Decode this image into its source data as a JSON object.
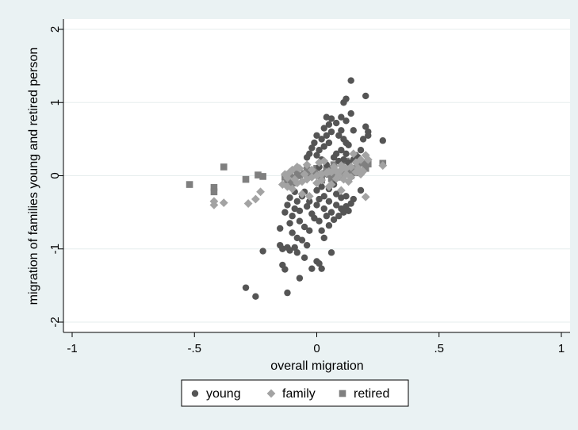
{
  "chart_data": {
    "type": "scatter",
    "xlabel": "overall migration",
    "ylabel": "migration of families young and retired person",
    "xlim": [
      -1,
      1
    ],
    "ylim": [
      -2,
      2
    ],
    "xticks": [
      -1,
      -0.5,
      0,
      0.5,
      1
    ],
    "xtick_labels": [
      "-1",
      "-.5",
      "0",
      ".5",
      "1"
    ],
    "yticks": [
      -2,
      -1,
      0,
      1,
      2
    ],
    "ytick_labels": [
      "-2",
      "-1",
      "0",
      "1",
      "2"
    ],
    "grid": true,
    "legend_position": "bottom",
    "series": [
      {
        "name": "young",
        "marker": "circle",
        "color": "#555555",
        "points": [
          [
            -0.25,
            -1.65
          ],
          [
            -0.29,
            -1.53
          ],
          [
            -0.12,
            -1.6
          ],
          [
            -0.22,
            -1.03
          ],
          [
            -0.15,
            -0.72
          ],
          [
            -0.14,
            -1.22
          ],
          [
            -0.13,
            -1.28
          ],
          [
            -0.15,
            -0.95
          ],
          [
            -0.14,
            -1.0
          ],
          [
            -0.12,
            -0.98
          ],
          [
            -0.11,
            -1.02
          ],
          [
            -0.09,
            -0.98
          ],
          [
            -0.08,
            -0.85
          ],
          [
            -0.1,
            -0.78
          ],
          [
            -0.11,
            -0.65
          ],
          [
            -0.1,
            -0.55
          ],
          [
            -0.09,
            -0.45
          ],
          [
            -0.08,
            -0.35
          ],
          [
            -0.06,
            -0.28
          ],
          [
            -0.05,
            -0.22
          ],
          [
            -0.07,
            -0.62
          ],
          [
            -0.05,
            -0.7
          ],
          [
            -0.03,
            -0.75
          ],
          [
            -0.06,
            -0.88
          ],
          [
            -0.04,
            -0.95
          ],
          [
            -0.08,
            -1.05
          ],
          [
            -0.05,
            -1.12
          ],
          [
            -0.07,
            -1.4
          ],
          [
            -0.02,
            -1.27
          ],
          [
            0.0,
            -1.17
          ],
          [
            0.01,
            -1.2
          ],
          [
            0.02,
            -1.27
          ],
          [
            0.06,
            -1.05
          ],
          [
            0.03,
            -0.85
          ],
          [
            0.02,
            -0.75
          ],
          [
            0.05,
            -0.68
          ],
          [
            0.01,
            -0.62
          ],
          [
            0.04,
            -0.55
          ],
          [
            0.06,
            -0.5
          ],
          [
            0.03,
            -0.45
          ],
          [
            0.0,
            -0.4
          ],
          [
            0.01,
            -0.32
          ],
          [
            0.05,
            -0.35
          ],
          [
            0.08,
            -0.4
          ],
          [
            0.1,
            -0.45
          ],
          [
            0.09,
            -0.55
          ],
          [
            0.07,
            -0.6
          ],
          [
            0.11,
            -0.5
          ],
          [
            0.12,
            -0.42
          ],
          [
            0.13,
            -0.48
          ],
          [
            0.1,
            -0.3
          ],
          [
            0.08,
            -0.25
          ],
          [
            0.12,
            -0.28
          ],
          [
            0.15,
            -0.32
          ],
          [
            0.18,
            -0.2
          ],
          [
            0.03,
            -0.28
          ],
          [
            -0.02,
            -0.52
          ],
          [
            -0.01,
            -0.58
          ],
          [
            -0.04,
            -0.42
          ],
          [
            -0.03,
            -0.35
          ],
          [
            0.0,
            -0.2
          ],
          [
            0.02,
            -0.15
          ],
          [
            0.14,
            -0.38
          ],
          [
            0.05,
            -0.18
          ],
          [
            0.07,
            -0.12
          ],
          [
            -0.09,
            -0.22
          ],
          [
            -0.11,
            -0.3
          ],
          [
            -0.12,
            -0.4
          ],
          [
            -0.13,
            -0.5
          ],
          [
            -0.07,
            -0.48
          ],
          [
            0.04,
            0.15
          ],
          [
            0.02,
            0.22
          ],
          [
            0.0,
            0.28
          ],
          [
            0.01,
            0.35
          ],
          [
            0.03,
            0.4
          ],
          [
            0.05,
            0.45
          ],
          [
            0.02,
            0.5
          ],
          [
            0.04,
            0.55
          ],
          [
            0.06,
            0.6
          ],
          [
            0.03,
            0.65
          ],
          [
            0.05,
            0.7
          ],
          [
            0.04,
            0.8
          ],
          [
            0.06,
            0.78
          ],
          [
            0.08,
            0.72
          ],
          [
            0.1,
            0.62
          ],
          [
            0.09,
            0.55
          ],
          [
            0.11,
            0.5
          ],
          [
            0.12,
            0.45
          ],
          [
            0.13,
            0.42
          ],
          [
            0.1,
            0.35
          ],
          [
            0.08,
            0.3
          ],
          [
            0.07,
            0.25
          ],
          [
            0.09,
            0.2
          ],
          [
            0.11,
            0.22
          ],
          [
            0.12,
            0.3
          ],
          [
            -0.01,
            0.45
          ],
          [
            -0.02,
            0.38
          ],
          [
            0.0,
            0.55
          ],
          [
            -0.03,
            0.3
          ],
          [
            -0.04,
            0.25
          ],
          [
            0.11,
            1.0
          ],
          [
            0.12,
            1.05
          ],
          [
            0.14,
            1.3
          ],
          [
            0.2,
            1.09
          ],
          [
            0.14,
            0.85
          ],
          [
            0.1,
            0.8
          ],
          [
            0.12,
            0.75
          ],
          [
            0.15,
            0.62
          ],
          [
            0.2,
            0.67
          ],
          [
            0.21,
            0.6
          ],
          [
            0.21,
            0.55
          ],
          [
            0.19,
            0.5
          ],
          [
            0.27,
            0.48
          ],
          [
            0.18,
            0.35
          ],
          [
            0.16,
            0.28
          ],
          [
            0.13,
            0.18
          ],
          [
            0.15,
            0.22
          ],
          [
            0.17,
            0.25
          ],
          [
            0.06,
            0.1
          ],
          [
            0.01,
            0.12
          ]
        ]
      },
      {
        "name": "family",
        "marker": "diamond",
        "color": "#a3a3a3",
        "points": [
          [
            -0.42,
            -0.4
          ],
          [
            -0.42,
            -0.35
          ],
          [
            -0.38,
            -0.37
          ],
          [
            -0.28,
            -0.38
          ],
          [
            -0.25,
            -0.32
          ],
          [
            -0.23,
            -0.22
          ],
          [
            -0.14,
            -0.12
          ],
          [
            -0.12,
            -0.15
          ],
          [
            -0.1,
            -0.18
          ],
          [
            -0.08,
            -0.1
          ],
          [
            -0.06,
            -0.08
          ],
          [
            -0.04,
            -0.05
          ],
          [
            -0.02,
            -0.02
          ],
          [
            0.0,
            0.0
          ],
          [
            0.02,
            0.02
          ],
          [
            0.04,
            0.04
          ],
          [
            0.06,
            0.05
          ],
          [
            0.08,
            0.06
          ],
          [
            0.1,
            0.08
          ],
          [
            0.12,
            0.1
          ],
          [
            0.14,
            0.12
          ],
          [
            0.16,
            0.18
          ],
          [
            0.18,
            0.22
          ],
          [
            0.2,
            0.28
          ],
          [
            0.21,
            0.22
          ],
          [
            0.15,
            0.3
          ],
          [
            0.27,
            0.14
          ],
          [
            0.2,
            -0.29
          ],
          [
            0.1,
            -0.2
          ],
          [
            0.05,
            -0.15
          ],
          [
            0.0,
            -0.1
          ],
          [
            -0.03,
            -0.28
          ],
          [
            -0.06,
            -0.25
          ],
          [
            -0.09,
            -0.05
          ],
          [
            -0.11,
            0.05
          ],
          [
            -0.07,
            0.1
          ],
          [
            -0.04,
            0.15
          ],
          [
            0.01,
            0.18
          ],
          [
            0.03,
            0.2
          ],
          [
            0.07,
            0.12
          ],
          [
            0.09,
            0.0
          ],
          [
            0.11,
            -0.05
          ],
          [
            0.13,
            -0.08
          ],
          [
            0.16,
            0.05
          ],
          [
            0.17,
            0.1
          ],
          [
            -0.13,
            0.02
          ],
          [
            -0.12,
            -0.03
          ],
          [
            -0.1,
            0.08
          ],
          [
            -0.08,
            0.12
          ],
          [
            -0.05,
            0.02
          ],
          [
            -0.02,
            0.08
          ],
          [
            0.02,
            -0.06
          ],
          [
            0.05,
            0.06
          ],
          [
            0.08,
            -0.04
          ],
          [
            0.1,
            0.14
          ],
          [
            0.12,
            0.02
          ],
          [
            0.14,
            -0.02
          ],
          [
            0.18,
            0.02
          ],
          [
            0.19,
            0.06
          ],
          [
            0.06,
            -0.12
          ]
        ]
      },
      {
        "name": "retired",
        "marker": "square",
        "color": "#7f7f7f",
        "points": [
          [
            -0.52,
            -0.12
          ],
          [
            -0.42,
            -0.16
          ],
          [
            -0.42,
            -0.22
          ],
          [
            -0.38,
            0.12
          ],
          [
            -0.29,
            -0.05
          ],
          [
            -0.24,
            0.01
          ],
          [
            -0.22,
            -0.01
          ],
          [
            -0.13,
            -0.02
          ],
          [
            -0.11,
            0.02
          ],
          [
            -0.09,
            -0.03
          ],
          [
            -0.07,
            0.0
          ],
          [
            -0.05,
            0.03
          ],
          [
            -0.03,
            -0.01
          ],
          [
            -0.01,
            0.02
          ],
          [
            0.01,
            0.0
          ],
          [
            0.03,
            0.03
          ],
          [
            0.05,
            0.02
          ],
          [
            0.07,
            0.05
          ],
          [
            0.09,
            0.04
          ],
          [
            0.11,
            0.06
          ],
          [
            0.13,
            0.08
          ],
          [
            0.15,
            0.1
          ],
          [
            0.17,
            0.14
          ],
          [
            0.2,
            0.1
          ],
          [
            0.27,
            0.17
          ],
          [
            0.21,
            0.16
          ],
          [
            0.19,
            0.18
          ],
          [
            0.12,
            0.2
          ],
          [
            0.07,
            0.15
          ],
          [
            0.0,
            0.1
          ],
          [
            -0.04,
            0.08
          ],
          [
            -0.08,
            0.05
          ],
          [
            -0.12,
            -0.06
          ],
          [
            -0.1,
            -0.1
          ],
          [
            0.02,
            -0.06
          ],
          [
            0.06,
            -0.04
          ],
          [
            0.1,
            -0.02
          ],
          [
            0.14,
            0.0
          ],
          [
            0.16,
            0.04
          ],
          [
            0.04,
            0.08
          ]
        ]
      }
    ]
  }
}
